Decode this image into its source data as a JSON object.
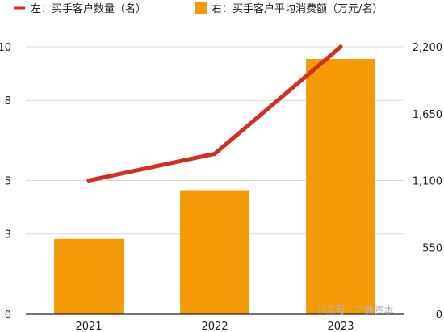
{
  "chart_data": {
    "type": "bar",
    "categories": [
      "2021",
      "2022",
      "2023"
    ],
    "series": [
      {
        "name": "右：买手客户平均消费额（万元/名）",
        "type": "bar",
        "axis": "right",
        "color": "#f59a07",
        "values": [
          620,
          1020,
          2100
        ]
      },
      {
        "name": "左：买手客户数量（名）",
        "type": "line",
        "axis": "left",
        "color": "#d62d20",
        "values": [
          5,
          6,
          10
        ]
      }
    ],
    "y_left": {
      "ylim": [
        0,
        10
      ],
      "ticks": [
        0,
        3,
        5,
        8,
        10
      ]
    },
    "y_right": {
      "ylim": [
        0,
        2200
      ],
      "ticks": [
        0,
        550,
        1100,
        1650,
        2200
      ],
      "tick_labels": [
        "0",
        "550",
        "1,100",
        "1,650",
        "2,200"
      ]
    },
    "grid": true,
    "legend": "top",
    "watermark": "公众号 · 二酉资本"
  }
}
